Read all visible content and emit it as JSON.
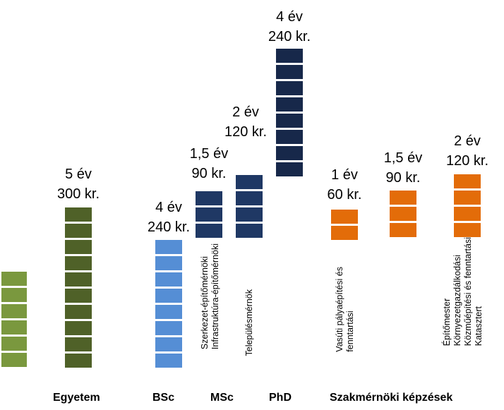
{
  "colors": {
    "lightgreen": "#7a983e",
    "darkgreen": "#4f6128",
    "lightblue": "#558ed5",
    "navy": "#1f3864",
    "darknavy": "#17284a",
    "orange": "#e36c09"
  },
  "groups": [
    {
      "id": "g0",
      "color": "lightgreen",
      "blocks": 6
    },
    {
      "id": "egyetem",
      "color": "darkgreen",
      "blocks": 10,
      "duration": "5 év",
      "credits": "300 kr."
    },
    {
      "id": "bsc",
      "color": "lightblue",
      "blocks": 8,
      "duration": "4 év",
      "credits": "240 kr."
    },
    {
      "id": "msc1",
      "color": "navy",
      "blocks": 3,
      "duration": "1,5 év",
      "credits": "90 kr."
    },
    {
      "id": "msc2",
      "color": "navy",
      "blocks": 4,
      "duration": "2 év",
      "credits": "120 kr."
    },
    {
      "id": "phd",
      "color": "darknavy",
      "blocks": 8,
      "duration": "4 év",
      "credits": "240 kr."
    },
    {
      "id": "szak1",
      "color": "orange",
      "blocks": 2,
      "duration": "1 év",
      "credits": "60 kr."
    },
    {
      "id": "szak2",
      "color": "orange",
      "blocks": 3,
      "duration": "1,5 év",
      "credits": "90 kr."
    },
    {
      "id": "szak3",
      "color": "orange",
      "blocks": 4,
      "duration": "2 év",
      "credits": "120 kr."
    }
  ],
  "categories": {
    "egyetem": "Egyetem",
    "bsc": "BSc",
    "msc": "MSc",
    "phd": "PhD",
    "szak": "Szakmérnöki képzések"
  },
  "specializations": {
    "msc1": [
      "Szerkezet-építőmérnöki",
      "Infrastruktúra-építőmérnöki"
    ],
    "msc2": [
      "Településmérnök"
    ],
    "szak1": [
      "Vasúti pályaépítési és",
      "fenntartási"
    ],
    "szak3": [
      "Építőmester",
      "Környezetgazdálkodási",
      "Közműépítési és fenntartási",
      "Katasztert"
    ]
  }
}
